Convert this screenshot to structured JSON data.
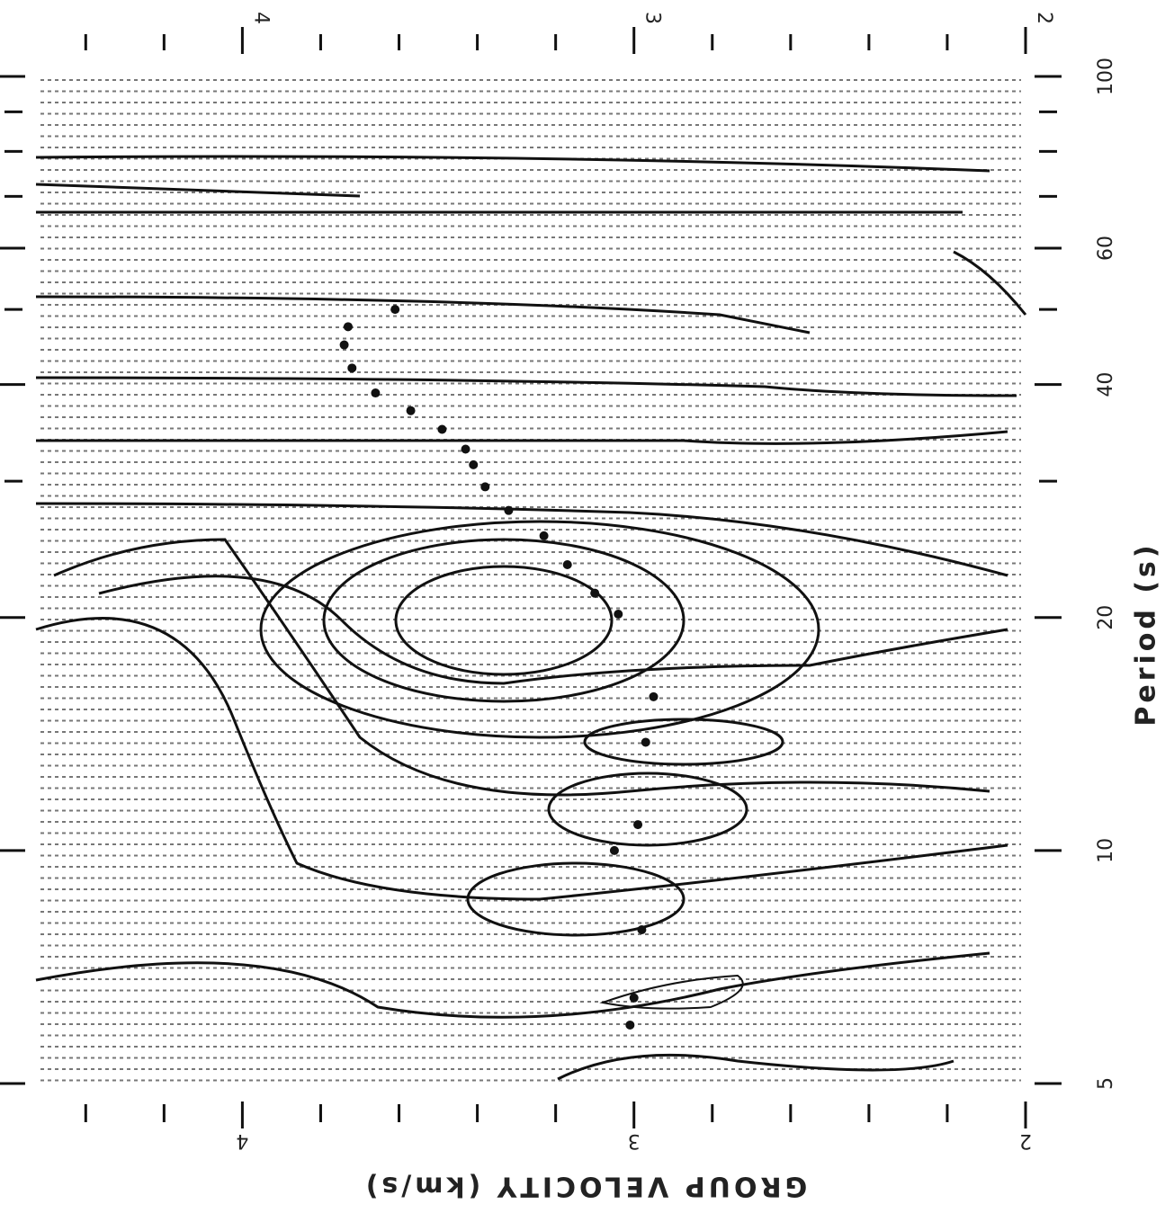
{
  "chart_data": {
    "type": "scatter",
    "x_label": "Period (s)",
    "y_label": "GROUP VELOCITY (km/s)",
    "x": [
      5.95,
      6.45,
      7.9,
      10,
      10.8,
      13.8,
      15.8,
      20.2,
      21.5,
      23.4,
      25.5,
      27.5,
      29.5,
      31.5,
      33,
      35,
      37,
      39,
      42,
      45,
      47.5,
      50
    ],
    "values": [
      3.01,
      3.0,
      2.98,
      3.05,
      2.99,
      2.97,
      2.95,
      3.04,
      3.1,
      3.17,
      3.23,
      3.32,
      3.38,
      3.41,
      3.43,
      3.49,
      3.57,
      3.66,
      3.72,
      3.74,
      3.73,
      3.61
    ],
    "color": "#111111",
    "xlog": true,
    "xlim": [
      5,
      100
    ],
    "xticks": [
      5,
      10,
      20,
      40,
      60,
      100
    ],
    "x_minor_ticks": [
      30,
      50,
      70,
      80,
      90
    ],
    "ylim": [
      2,
      4.55
    ],
    "yticks": [
      2,
      3,
      4
    ],
    "y_minor_ticks": [
      2.2,
      2.4,
      2.6,
      2.8,
      3.2,
      3.4,
      3.6,
      3.8,
      4.2,
      4.4
    ]
  }
}
